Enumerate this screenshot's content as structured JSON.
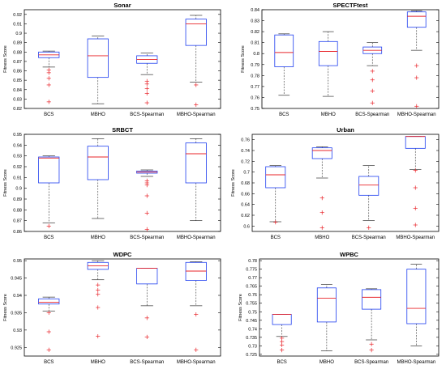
{
  "figure": {
    "y_label": "Fitness Score",
    "x_categories": [
      "BCS",
      "MBHO",
      "BCS-Spearman",
      "MBHO-Spearman"
    ]
  },
  "colors": {
    "box": "#1f3ff0",
    "median": "#e8242a",
    "outlier": "#e8242a",
    "whisker": "#333333"
  },
  "chart_data": [
    {
      "type": "box",
      "title": "Sonar",
      "ylabel": "Fitness Score",
      "categories": [
        "BCS",
        "MBHO",
        "BCS-Spearman",
        "MBHO-Spearman"
      ],
      "ylim": [
        0.82,
        0.925
      ],
      "yticks": [
        "0.82",
        "0.83",
        "0.84",
        "0.85",
        "0.86",
        "0.87",
        "0.88",
        "0.89",
        "0.9",
        "0.91",
        "0.92"
      ],
      "boxes": [
        {
          "category": "BCS",
          "q1": 0.874,
          "median": 0.877,
          "q3": 0.88,
          "whisker_low": 0.864,
          "whisker_high": 0.881,
          "outliers": [
            0.861,
            0.858,
            0.852,
            0.845,
            0.827
          ]
        },
        {
          "category": "MBHO",
          "q1": 0.853,
          "median": 0.876,
          "q3": 0.894,
          "whisker_low": 0.825,
          "whisker_high": 0.897,
          "outliers": []
        },
        {
          "category": "BCS-Spearman",
          "q1": 0.868,
          "median": 0.872,
          "q3": 0.876,
          "whisker_low": 0.856,
          "whisker_high": 0.879,
          "outliers": [
            0.849,
            0.846,
            0.841,
            0.836,
            0.826
          ]
        },
        {
          "category": "MBHO-Spearman",
          "q1": 0.887,
          "median": 0.91,
          "q3": 0.915,
          "whisker_low": 0.848,
          "whisker_high": 0.919,
          "outliers": [
            0.845,
            0.824
          ]
        }
      ]
    },
    {
      "type": "box",
      "title": "SPECTFtest",
      "ylabel": "Fitness Score",
      "categories": [
        "BCS",
        "MBHO",
        "BCS-Spearman",
        "MBHO-Spearman"
      ],
      "ylim": [
        0.75,
        0.84
      ],
      "yticks": [
        "0.75",
        "0.76",
        "0.77",
        "0.78",
        "0.79",
        "0.8",
        "0.81",
        "0.82",
        "0.83",
        "0.84"
      ],
      "boxes": [
        {
          "category": "BCS",
          "q1": 0.788,
          "median": 0.801,
          "q3": 0.817,
          "whisker_low": 0.762,
          "whisker_high": 0.818,
          "outliers": []
        },
        {
          "category": "MBHO",
          "q1": 0.789,
          "median": 0.802,
          "q3": 0.811,
          "whisker_low": 0.761,
          "whisker_high": 0.82,
          "outliers": []
        },
        {
          "category": "BCS-Spearman",
          "q1": 0.8,
          "median": 0.803,
          "q3": 0.806,
          "whisker_low": 0.789,
          "whisker_high": 0.81,
          "outliers": [
            0.784,
            0.776,
            0.766,
            0.755
          ]
        },
        {
          "category": "MBHO-Spearman",
          "q1": 0.824,
          "median": 0.834,
          "q3": 0.838,
          "whisker_low": 0.803,
          "whisker_high": 0.839,
          "outliers": [
            0.789,
            0.778,
            0.752
          ]
        }
      ]
    },
    {
      "type": "box",
      "title": "SRBCT",
      "ylabel": "Fitness Score",
      "categories": [
        "BCS",
        "MBHO",
        "BCS-Spearman",
        "MBHO-Spearman"
      ],
      "ylim": [
        0.86,
        0.95
      ],
      "yticks": [
        "0.86",
        "0.87",
        "0.88",
        "0.89",
        "0.9",
        "0.91",
        "0.92",
        "0.93",
        "0.94",
        "0.95"
      ],
      "boxes": [
        {
          "category": "BCS",
          "q1": 0.905,
          "median": 0.928,
          "q3": 0.929,
          "whisker_low": 0.868,
          "whisker_high": 0.93,
          "outliers": [
            0.865
          ]
        },
        {
          "category": "MBHO",
          "q1": 0.908,
          "median": 0.929,
          "q3": 0.939,
          "whisker_low": 0.872,
          "whisker_high": 0.946,
          "outliers": []
        },
        {
          "category": "BCS-Spearman",
          "q1": 0.914,
          "median": 0.915,
          "q3": 0.916,
          "whisker_low": 0.911,
          "whisker_high": 0.917,
          "outliers": [
            0.907,
            0.905,
            0.903,
            0.893,
            0.877,
            0.862
          ]
        },
        {
          "category": "MBHO-Spearman",
          "q1": 0.905,
          "median": 0.932,
          "q3": 0.942,
          "whisker_low": 0.87,
          "whisker_high": 0.946,
          "outliers": []
        }
      ]
    },
    {
      "type": "box",
      "title": "Urban",
      "ylabel": "Fitness Score",
      "categories": [
        "BCS",
        "MBHO",
        "BCS-Spearman",
        "MBHO-Spearman"
      ],
      "ylim": [
        0.59,
        0.77
      ],
      "yticks": [
        "0.6",
        "0.62",
        "0.64",
        "0.66",
        "0.68",
        "0.7",
        "0.72",
        "0.74",
        "0.76"
      ],
      "boxes": [
        {
          "category": "BCS",
          "q1": 0.671,
          "median": 0.695,
          "q3": 0.71,
          "whisker_low": 0.608,
          "whisker_high": 0.712,
          "outliers": [
            0.607
          ]
        },
        {
          "category": "MBHO",
          "q1": 0.725,
          "median": 0.74,
          "q3": 0.745,
          "whisker_low": 0.689,
          "whisker_high": 0.747,
          "outliers": [
            0.652,
            0.625,
            0.597
          ]
        },
        {
          "category": "BCS-Spearman",
          "q1": 0.657,
          "median": 0.676,
          "q3": 0.692,
          "whisker_low": 0.61,
          "whisker_high": 0.712,
          "outliers": [
            0.597
          ]
        },
        {
          "category": "MBHO-Spearman",
          "q1": 0.744,
          "median": 0.766,
          "q3": 0.766,
          "whisker_low": 0.705,
          "whisker_high": 0.766,
          "outliers": [
            0.703,
            0.671,
            0.633,
            0.602
          ]
        }
      ]
    },
    {
      "type": "box",
      "title": "WDPC",
      "ylabel": "Fitness Score",
      "categories": [
        "BCS",
        "MBHO",
        "BCS-Spearman",
        "MBHO-Spearman"
      ],
      "ylim": [
        0.9225,
        0.9505
      ],
      "yticks": [
        "0.925",
        "0.93",
        "0.935",
        "0.94",
        "0.945",
        "0.95"
      ],
      "boxes": [
        {
          "category": "BCS",
          "q1": 0.9375,
          "median": 0.938,
          "q3": 0.939,
          "whisker_low": 0.9355,
          "whisker_high": 0.9395,
          "outliers": [
            0.935,
            0.9295,
            0.9243
          ]
        },
        {
          "category": "MBHO",
          "q1": 0.9475,
          "median": 0.9485,
          "q3": 0.9495,
          "whisker_low": 0.9445,
          "whisker_high": 0.95,
          "outliers": [
            0.943,
            0.9415,
            0.9403,
            0.9365,
            0.9282
          ]
        },
        {
          "category": "BCS-Spearman",
          "q1": 0.9433,
          "median": 0.9478,
          "q3": 0.9478,
          "whisker_low": 0.937,
          "whisker_high": 0.9478,
          "outliers": [
            0.9335,
            0.928
          ]
        },
        {
          "category": "MBHO-Spearman",
          "q1": 0.9443,
          "median": 0.947,
          "q3": 0.9495,
          "whisker_low": 0.937,
          "whisker_high": 0.9497,
          "outliers": [
            0.9345,
            0.9243
          ]
        }
      ]
    },
    {
      "type": "box",
      "title": "WPBC",
      "ylabel": "Fitness Score",
      "categories": [
        "BCS",
        "MBHO",
        "BCS-Spearman",
        "MBHO-Spearman"
      ],
      "ylim": [
        0.724,
        0.781
      ],
      "yticks": [
        "0.725",
        "0.73",
        "0.735",
        "0.74",
        "0.745",
        "0.75",
        "0.755",
        "0.76",
        "0.765",
        "0.77",
        "0.775",
        "0.78"
      ],
      "boxes": [
        {
          "category": "BCS",
          "q1": 0.7425,
          "median": 0.7485,
          "q3": 0.7485,
          "whisker_low": 0.7355,
          "whisker_high": 0.7485,
          "outliers": [
            0.7345,
            0.7325,
            0.7305,
            0.7275
          ]
        },
        {
          "category": "MBHO",
          "q1": 0.744,
          "median": 0.758,
          "q3": 0.764,
          "whisker_low": 0.727,
          "whisker_high": 0.766,
          "outliers": []
        },
        {
          "category": "BCS-Spearman",
          "q1": 0.7515,
          "median": 0.7585,
          "q3": 0.763,
          "whisker_low": 0.7335,
          "whisker_high": 0.7635,
          "outliers": [
            0.731,
            0.7275
          ]
        },
        {
          "category": "MBHO-Spearman",
          "q1": 0.743,
          "median": 0.752,
          "q3": 0.775,
          "whisker_low": 0.73,
          "whisker_high": 0.778,
          "outliers": []
        }
      ]
    }
  ]
}
